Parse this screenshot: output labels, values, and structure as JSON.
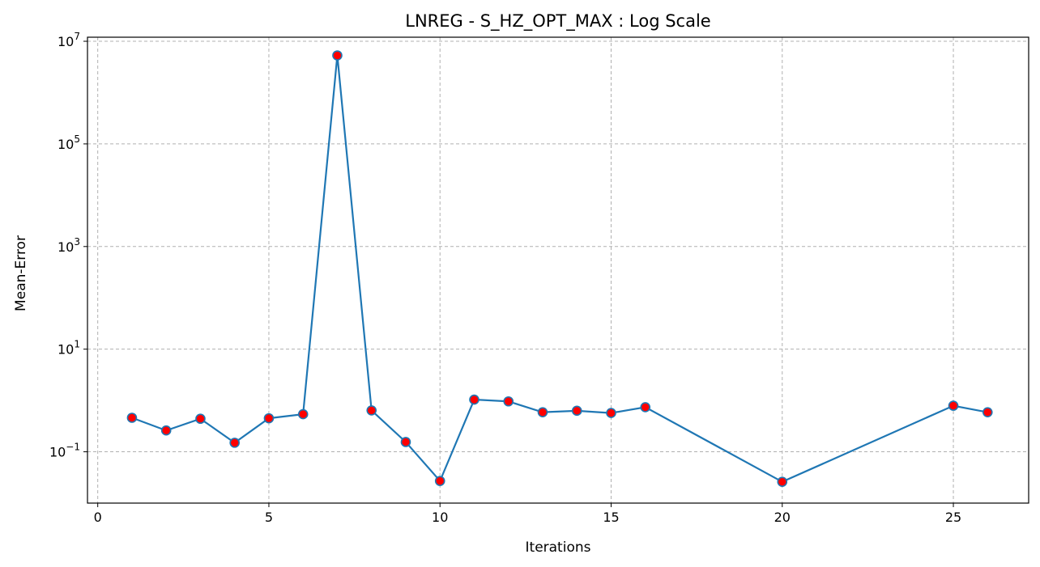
{
  "chart_data": {
    "type": "line",
    "title": "LNREG - S_HZ_OPT_MAX : Log Scale",
    "xlabel": "Iterations",
    "ylabel": "Mean-Error",
    "yscale": "log",
    "xlim": [
      -0.3,
      27.2
    ],
    "ylim": [
      0.01,
      12000000
    ],
    "x_ticks": [
      0,
      5,
      10,
      15,
      20,
      25
    ],
    "y_ticks": [
      {
        "value": 0.1,
        "base": "10",
        "exp": "−1"
      },
      {
        "value": 10,
        "base": "10",
        "exp": "1"
      },
      {
        "value": 1000,
        "base": "10",
        "exp": "3"
      },
      {
        "value": 100000,
        "base": "10",
        "exp": "5"
      },
      {
        "value": 10000000,
        "base": "10",
        "exp": "7"
      }
    ],
    "grid": true,
    "series": [
      {
        "x": [
          1,
          2,
          3,
          4,
          5,
          6,
          7,
          8,
          9,
          10,
          11,
          12,
          13,
          14,
          15,
          16,
          20,
          25,
          26
        ],
        "values": [
          0.46,
          0.26,
          0.44,
          0.15,
          0.45,
          0.54,
          5300000,
          0.64,
          0.155,
          0.027,
          1.04,
          0.96,
          0.59,
          0.63,
          0.57,
          0.74,
          0.026,
          0.79,
          0.59
        ],
        "line_color": "#1f77b4",
        "marker_face": "#ff0000",
        "marker_edge": "#1f77b4"
      }
    ]
  }
}
